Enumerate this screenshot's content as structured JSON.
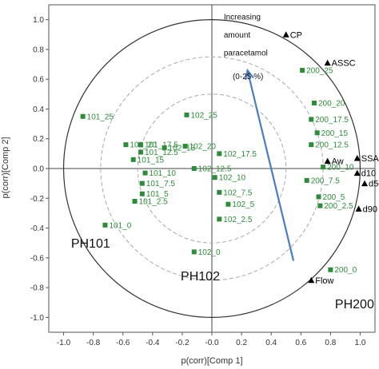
{
  "chart_data": {
    "type": "scatter",
    "xlabel": "p(corr)[Comp 1]",
    "ylabel": "p(corr)[Comp 2]",
    "xlim": [
      -1.1,
      1.1
    ],
    "ylim": [
      -1.1,
      1.1
    ],
    "x_ticks": [
      "-1.0",
      "-0.8",
      "-0.6",
      "-0.4",
      "-0.2",
      "-0.0",
      "0.2",
      "0.4",
      "0.6",
      "0.8",
      "1.0"
    ],
    "y_ticks": [
      "1.0",
      "0.8",
      "0.6",
      "0.4",
      "0.2",
      "0.0",
      "-0.2",
      "-0.4",
      "-0.6",
      "-0.8",
      "-1.0"
    ],
    "grid": false,
    "reference_circles_radius": [
      1.0,
      0.75,
      0.5
    ],
    "colors": {
      "scores": "#2e8b3a",
      "loadings": "#000000",
      "arrow": "#4a7cc2",
      "circle_inner": "#aaaaaa"
    },
    "series": [
      {
        "marker": "square",
        "points": [
          {
            "label": "101_25",
            "x": -0.87,
            "y": 0.35
          },
          {
            "label": "101_20",
            "x": -0.58,
            "y": 0.16
          },
          {
            "label": "101_17.5",
            "x": -0.48,
            "y": 0.16
          },
          {
            "label": "101_15",
            "x": -0.53,
            "y": 0.06
          },
          {
            "label": "101_12.5",
            "x": -0.48,
            "y": 0.11
          },
          {
            "label": "101_10",
            "x": -0.45,
            "y": -0.03
          },
          {
            "label": "101_7.5",
            "x": -0.47,
            "y": -0.1
          },
          {
            "label": "101_5",
            "x": -0.47,
            "y": -0.17
          },
          {
            "label": "101_2.5",
            "x": -0.52,
            "y": -0.22
          },
          {
            "label": "101_0",
            "x": -0.72,
            "y": -0.38
          },
          {
            "label": "102_25",
            "x": -0.17,
            "y": 0.36
          },
          {
            "label": "102_20",
            "x": -0.18,
            "y": 0.15
          },
          {
            "label": "102_17.5",
            "x": 0.05,
            "y": 0.1
          },
          {
            "label": "102_15",
            "x": -0.32,
            "y": 0.14
          },
          {
            "label": "102_12.5",
            "x": -0.12,
            "y": 0.0
          },
          {
            "label": "102_10",
            "x": 0.02,
            "y": -0.06
          },
          {
            "label": "102_7.5",
            "x": 0.05,
            "y": -0.16
          },
          {
            "label": "102_5",
            "x": 0.11,
            "y": -0.24
          },
          {
            "label": "102_2.5",
            "x": 0.05,
            "y": -0.34
          },
          {
            "label": "102_0",
            "x": -0.12,
            "y": -0.56
          },
          {
            "label": "200_25",
            "x": 0.61,
            "y": 0.66
          },
          {
            "label": "200_20",
            "x": 0.69,
            "y": 0.44
          },
          {
            "label": "200_17.5",
            "x": 0.67,
            "y": 0.33
          },
          {
            "label": "200_15",
            "x": 0.71,
            "y": 0.24
          },
          {
            "label": "200_12.5",
            "x": 0.67,
            "y": 0.16
          },
          {
            "label": "200_10",
            "x": 0.75,
            "y": 0.01
          },
          {
            "label": "200_7.5",
            "x": 0.64,
            "y": -0.08
          },
          {
            "label": "200_5",
            "x": 0.72,
            "y": -0.19
          },
          {
            "label": "200_2.5",
            "x": 0.73,
            "y": -0.25
          },
          {
            "label": "200_0",
            "x": 0.8,
            "y": -0.68
          }
        ]
      },
      {
        "marker": "triangle",
        "points": [
          {
            "label": "CP",
            "x": 0.5,
            "y": 0.9
          },
          {
            "label": "ASSC",
            "x": 0.78,
            "y": 0.71
          },
          {
            "label": "Aw",
            "x": 0.78,
            "y": 0.05
          },
          {
            "label": "SSA",
            "x": 0.98,
            "y": 0.07
          },
          {
            "label": "d10",
            "x": 0.98,
            "y": -0.03
          },
          {
            "label": "d50",
            "x": 1.03,
            "y": -0.1
          },
          {
            "label": "d90",
            "x": 0.99,
            "y": -0.27
          },
          {
            "label": "Flow",
            "x": 0.67,
            "y": -0.75
          }
        ]
      }
    ],
    "annotations": [
      {
        "text": "Increasing",
        "x": 0.08,
        "y": 1.0
      },
      {
        "text": "amount",
        "x": 0.08,
        "y": 0.88
      },
      {
        "text": "paracetamol",
        "x": 0.08,
        "y": 0.76
      },
      {
        "text": "(0-25 %)",
        "x": 0.14,
        "y": 0.6
      }
    ],
    "arrow": {
      "from": [
        0.55,
        -0.62
      ],
      "to": [
        0.24,
        0.66
      ]
    },
    "group_labels": [
      {
        "text": "PH101",
        "x": -0.95,
        "y": -0.53
      },
      {
        "text": "PH102",
        "x": -0.21,
        "y": -0.75
      },
      {
        "text": "PH200",
        "x": 0.83,
        "y": -0.94
      }
    ]
  }
}
